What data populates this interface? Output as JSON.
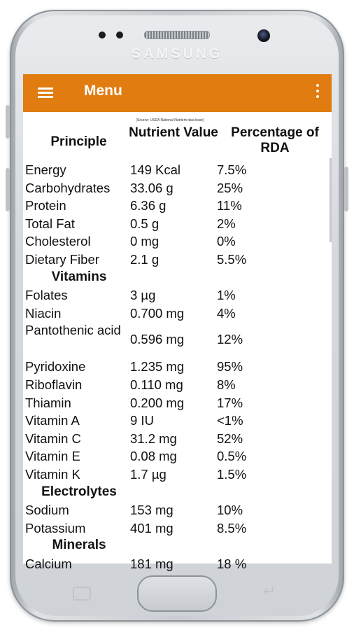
{
  "device": {
    "brand": "SAMSUNG"
  },
  "appbar": {
    "title": "Menu",
    "menu_icon": "hamburger-menu-icon",
    "overflow_icon": "more-vert-icon",
    "color": "#e07c10"
  },
  "table": {
    "source_note": "(Source: USDA National Nutrient data base)",
    "headers": [
      "Principle",
      "Nutrient Value",
      "Percentage of RDA"
    ],
    "rows": [
      {
        "type": "row",
        "principle": "Energy",
        "value": "149 Kcal",
        "rda": "7.5%"
      },
      {
        "type": "row",
        "principle": "Carbohydrates",
        "value": "33.06 g",
        "rda": "25%"
      },
      {
        "type": "row",
        "principle": "Protein",
        "value": "6.36 g",
        "rda": "11%"
      },
      {
        "type": "row",
        "principle": "Total Fat",
        "value": "0.5 g",
        "rda": "2%"
      },
      {
        "type": "row",
        "principle": "Cholesterol",
        "value": "0 mg",
        "rda": "0%"
      },
      {
        "type": "row",
        "principle": "Dietary Fiber",
        "value": "2.1 g",
        "rda": "5.5%"
      },
      {
        "type": "section",
        "label": "Vitamins"
      },
      {
        "type": "row",
        "principle": "Folates",
        "value": "3 µg",
        "rda": "1%"
      },
      {
        "type": "row",
        "principle": "Niacin",
        "value": "0.700 mg",
        "rda": "4%"
      },
      {
        "type": "row",
        "principle": "Pantothenic acid",
        "value": "0.596 mg",
        "rda": "12%",
        "tall": true
      },
      {
        "type": "row",
        "principle": "Pyridoxine",
        "value": "1.235 mg",
        "rda": "95%"
      },
      {
        "type": "row",
        "principle": "Riboflavin",
        "value": "0.110 mg",
        "rda": "8%"
      },
      {
        "type": "row",
        "principle": "Thiamin",
        "value": "0.200 mg",
        "rda": "17%"
      },
      {
        "type": "row",
        "principle": "Vitamin A",
        "value": "9 IU",
        "rda": "<1%"
      },
      {
        "type": "row",
        "principle": "Vitamin C",
        "value": "31.2 mg",
        "rda": "52%"
      },
      {
        "type": "row",
        "principle": "Vitamin E",
        "value": "0.08 mg",
        "rda": "0.5%"
      },
      {
        "type": "row",
        "principle": "Vitamin K",
        "value": "1.7 µg",
        "rda": "1.5%"
      },
      {
        "type": "section",
        "label": "Electrolytes"
      },
      {
        "type": "row",
        "principle": "Sodium",
        "value": "153 mg",
        "rda": "10%"
      },
      {
        "type": "row",
        "principle": "Potassium",
        "value": "401 mg",
        "rda": "8.5%"
      },
      {
        "type": "section",
        "label": "Minerals"
      },
      {
        "type": "row",
        "principle": "Calcium",
        "value": "181 mg",
        "rda": "18 %"
      }
    ]
  }
}
